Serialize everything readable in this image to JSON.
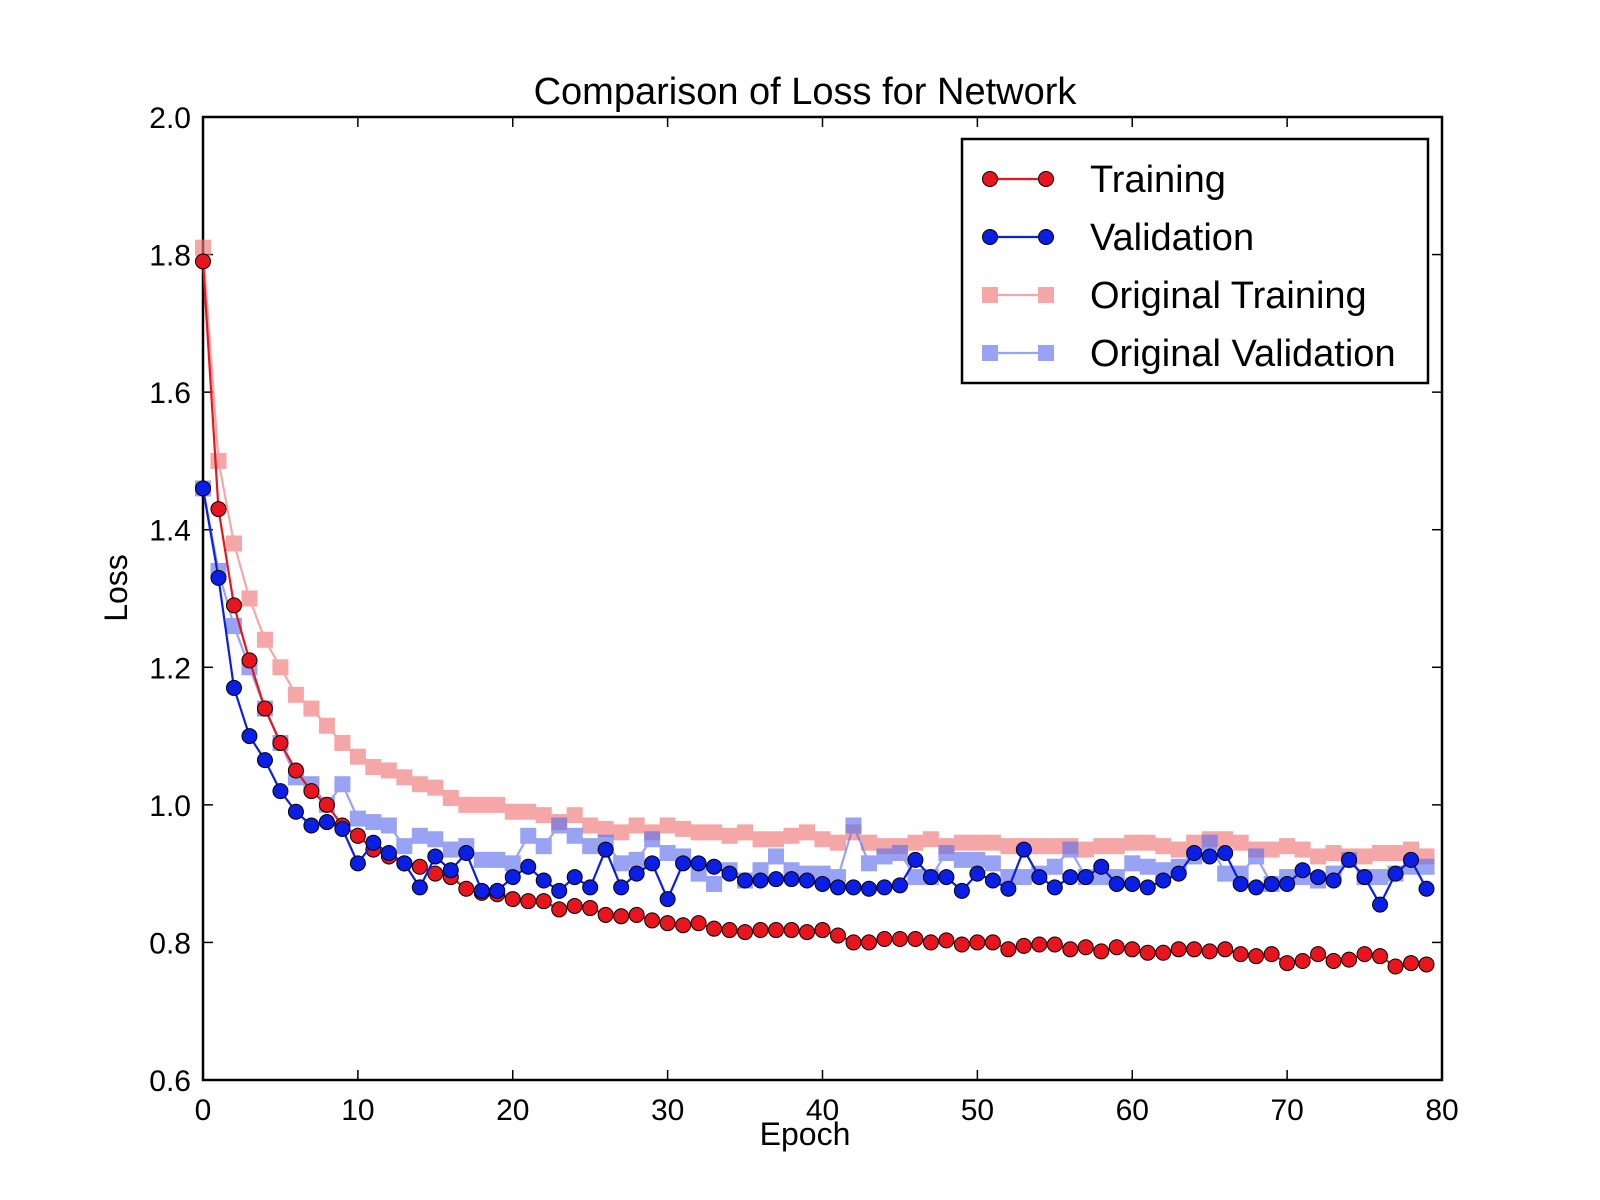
{
  "chart_data": {
    "type": "line",
    "title": "Comparison of Loss for Network",
    "xlabel": "Epoch",
    "ylabel": "Loss",
    "xlim": [
      0,
      80
    ],
    "ylim": [
      0.6,
      2.0
    ],
    "xticks": [
      "0",
      "10",
      "20",
      "30",
      "40",
      "50",
      "60",
      "70",
      "80"
    ],
    "yticks": [
      "0.6",
      "0.8",
      "1.0",
      "1.2",
      "1.4",
      "1.6",
      "1.8",
      "2.0"
    ],
    "grid": false,
    "legend_position": "top-right",
    "series": [
      {
        "name": "Training",
        "color": "#e8141e",
        "marker": "circle",
        "alpha": 1,
        "x": [
          0,
          1,
          2,
          3,
          4,
          5,
          6,
          7,
          8,
          9,
          10,
          11,
          12,
          13,
          14,
          15,
          16,
          17,
          18,
          19,
          20,
          21,
          22,
          23,
          24,
          25,
          26,
          27,
          28,
          29,
          30,
          31,
          32,
          33,
          34,
          35,
          36,
          37,
          38,
          39,
          40,
          41,
          42,
          43,
          44,
          45,
          46,
          47,
          48,
          49,
          50,
          51,
          52,
          53,
          54,
          55,
          56,
          57,
          58,
          59,
          60,
          61,
          62,
          63,
          64,
          65,
          66,
          67,
          68,
          69,
          70,
          71,
          72,
          73,
          74,
          75,
          76,
          77,
          78,
          79
        ],
        "values": [
          1.79,
          1.43,
          1.29,
          1.21,
          1.14,
          1.09,
          1.05,
          1.02,
          1.0,
          0.97,
          0.955,
          0.935,
          0.925,
          0.915,
          0.91,
          0.9,
          0.895,
          0.878,
          0.872,
          0.87,
          0.863,
          0.86,
          0.86,
          0.848,
          0.853,
          0.85,
          0.84,
          0.838,
          0.84,
          0.832,
          0.828,
          0.825,
          0.828,
          0.82,
          0.818,
          0.815,
          0.818,
          0.818,
          0.818,
          0.815,
          0.818,
          0.81,
          0.8,
          0.8,
          0.805,
          0.805,
          0.805,
          0.8,
          0.803,
          0.797,
          0.8,
          0.8,
          0.79,
          0.795,
          0.797,
          0.797,
          0.79,
          0.793,
          0.787,
          0.793,
          0.79,
          0.785,
          0.785,
          0.79,
          0.79,
          0.787,
          0.79,
          0.783,
          0.78,
          0.783,
          0.77,
          0.773,
          0.783,
          0.773,
          0.775,
          0.783,
          0.78,
          0.765,
          0.77,
          0.768
        ]
      },
      {
        "name": "Validation",
        "color": "#0a1ee6",
        "marker": "circle",
        "alpha": 1,
        "x": [
          0,
          1,
          2,
          3,
          4,
          5,
          6,
          7,
          8,
          9,
          10,
          11,
          12,
          13,
          14,
          15,
          16,
          17,
          18,
          19,
          20,
          21,
          22,
          23,
          24,
          25,
          26,
          27,
          28,
          29,
          30,
          31,
          32,
          33,
          34,
          35,
          36,
          37,
          38,
          39,
          40,
          41,
          42,
          43,
          44,
          45,
          46,
          47,
          48,
          49,
          50,
          51,
          52,
          53,
          54,
          55,
          56,
          57,
          58,
          59,
          60,
          61,
          62,
          63,
          64,
          65,
          66,
          67,
          68,
          69,
          70,
          71,
          72,
          73,
          74,
          75,
          76,
          77,
          78,
          79
        ],
        "values": [
          1.46,
          1.33,
          1.17,
          1.1,
          1.065,
          1.02,
          0.99,
          0.97,
          0.975,
          0.965,
          0.915,
          0.945,
          0.93,
          0.915,
          0.88,
          0.925,
          0.905,
          0.93,
          0.875,
          0.875,
          0.895,
          0.91,
          0.89,
          0.875,
          0.895,
          0.88,
          0.935,
          0.88,
          0.9,
          0.915,
          0.863,
          0.915,
          0.915,
          0.91,
          0.9,
          0.89,
          0.89,
          0.892,
          0.892,
          0.89,
          0.885,
          0.88,
          0.88,
          0.878,
          0.88,
          0.883,
          0.92,
          0.895,
          0.895,
          0.875,
          0.9,
          0.89,
          0.878,
          0.935,
          0.895,
          0.88,
          0.895,
          0.895,
          0.91,
          0.885,
          0.885,
          0.88,
          0.89,
          0.9,
          0.93,
          0.925,
          0.93,
          0.885,
          0.88,
          0.885,
          0.885,
          0.905,
          0.895,
          0.89,
          0.92,
          0.895,
          0.855,
          0.9,
          0.92,
          0.878
        ]
      },
      {
        "name": "Original Training",
        "color": "#f07878",
        "marker": "square",
        "alpha": 0.65,
        "x": [
          0,
          1,
          2,
          3,
          4,
          5,
          6,
          7,
          8,
          9,
          10,
          11,
          12,
          13,
          14,
          15,
          16,
          17,
          18,
          19,
          20,
          21,
          22,
          23,
          24,
          25,
          26,
          27,
          28,
          29,
          30,
          31,
          32,
          33,
          34,
          35,
          36,
          37,
          38,
          39,
          40,
          41,
          42,
          43,
          44,
          45,
          46,
          47,
          48,
          49,
          50,
          51,
          52,
          53,
          54,
          55,
          56,
          57,
          58,
          59,
          60,
          61,
          62,
          63,
          64,
          65,
          66,
          67,
          68,
          69,
          70,
          71,
          72,
          73,
          74,
          75,
          76,
          77,
          78,
          79
        ],
        "values": [
          1.81,
          1.5,
          1.38,
          1.3,
          1.24,
          1.2,
          1.16,
          1.14,
          1.115,
          1.09,
          1.07,
          1.055,
          1.05,
          1.04,
          1.03,
          1.025,
          1.01,
          1.0,
          1.0,
          1.0,
          0.99,
          0.99,
          0.985,
          0.975,
          0.985,
          0.97,
          0.965,
          0.96,
          0.97,
          0.96,
          0.97,
          0.965,
          0.96,
          0.96,
          0.955,
          0.96,
          0.95,
          0.95,
          0.955,
          0.96,
          0.95,
          0.945,
          0.96,
          0.945,
          0.94,
          0.94,
          0.945,
          0.95,
          0.94,
          0.945,
          0.945,
          0.945,
          0.94,
          0.94,
          0.94,
          0.94,
          0.94,
          0.935,
          0.94,
          0.94,
          0.945,
          0.945,
          0.94,
          0.935,
          0.945,
          0.95,
          0.95,
          0.945,
          0.935,
          0.935,
          0.94,
          0.935,
          0.925,
          0.93,
          0.925,
          0.925,
          0.93,
          0.93,
          0.935,
          0.925
        ]
      },
      {
        "name": "Original Validation",
        "color": "#6272ee",
        "marker": "square",
        "alpha": 0.65,
        "x": [
          0,
          1,
          2,
          3,
          4,
          5,
          6,
          7,
          8,
          9,
          10,
          11,
          12,
          13,
          14,
          15,
          16,
          17,
          18,
          19,
          20,
          21,
          22,
          23,
          24,
          25,
          26,
          27,
          28,
          29,
          30,
          31,
          32,
          33,
          34,
          35,
          36,
          37,
          38,
          39,
          40,
          41,
          42,
          43,
          44,
          45,
          46,
          47,
          48,
          49,
          50,
          51,
          52,
          53,
          54,
          55,
          56,
          57,
          58,
          59,
          60,
          61,
          62,
          63,
          64,
          65,
          66,
          67,
          68,
          69,
          70,
          71,
          72,
          73,
          74,
          75,
          76,
          77,
          78,
          79
        ],
        "values": [
          1.46,
          1.34,
          1.26,
          1.2,
          1.14,
          1.09,
          1.04,
          1.03,
          1.0,
          1.03,
          0.98,
          0.975,
          0.97,
          0.94,
          0.955,
          0.95,
          0.935,
          0.94,
          0.92,
          0.92,
          0.915,
          0.955,
          0.94,
          0.97,
          0.955,
          0.94,
          0.945,
          0.915,
          0.92,
          0.95,
          0.93,
          0.925,
          0.9,
          0.885,
          0.905,
          0.89,
          0.905,
          0.925,
          0.905,
          0.9,
          0.9,
          0.895,
          0.97,
          0.915,
          0.925,
          0.93,
          0.895,
          0.895,
          0.93,
          0.92,
          0.92,
          0.915,
          0.895,
          0.895,
          0.9,
          0.91,
          0.935,
          0.895,
          0.895,
          0.895,
          0.915,
          0.91,
          0.905,
          0.91,
          0.925,
          0.945,
          0.9,
          0.9,
          0.925,
          0.885,
          0.895,
          0.895,
          0.89,
          0.9,
          0.92,
          0.895,
          0.895,
          0.9,
          0.91,
          0.91
        ]
      }
    ]
  }
}
